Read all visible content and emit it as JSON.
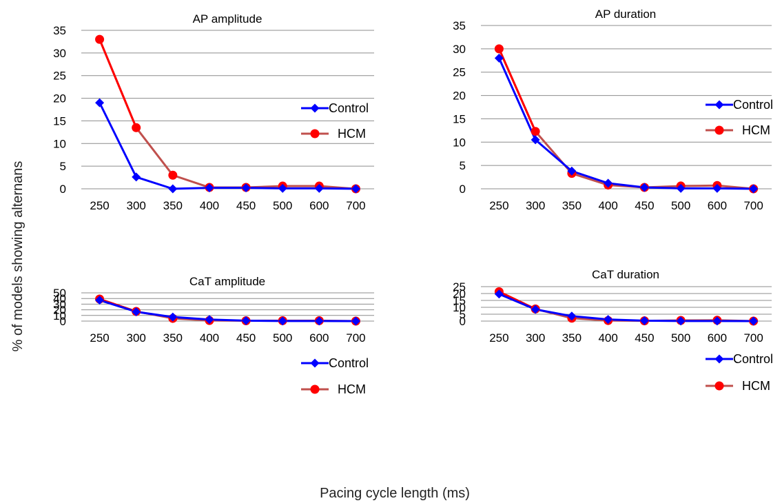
{
  "figure": {
    "xlabel": "Pacing cycle length (ms)",
    "ylabel": "% of models showing alternans",
    "series_colors": {
      "Control": "#0000ff",
      "HCM": "#ff0000",
      "HCM_line": "#c0504d"
    }
  },
  "chart_data": [
    {
      "type": "line",
      "title": "AP amplitude",
      "categories": [
        "250",
        "300",
        "350",
        "400",
        "450",
        "500",
        "600",
        "700"
      ],
      "ylim": [
        0,
        35
      ],
      "yticks": [
        "0",
        "5",
        "10",
        "15",
        "20",
        "25",
        "30",
        "35"
      ],
      "legend": "right",
      "grid": true,
      "series": [
        {
          "name": "Control",
          "values": [
            19,
            2.6,
            0,
            0.2,
            0.2,
            0.1,
            0.1,
            0
          ],
          "marker": "diamond"
        },
        {
          "name": "HCM",
          "values": [
            33,
            13.5,
            3,
            0.3,
            0.3,
            0.6,
            0.6,
            0
          ],
          "marker": "circle"
        }
      ]
    },
    {
      "type": "line",
      "title": "AP duration",
      "categories": [
        "250",
        "300",
        "350",
        "400",
        "450",
        "500",
        "600",
        "700"
      ],
      "ylim": [
        0,
        35
      ],
      "yticks": [
        "0",
        "5",
        "10",
        "15",
        "20",
        "25",
        "30",
        "35"
      ],
      "legend": "right",
      "grid": true,
      "series": [
        {
          "name": "Control",
          "values": [
            28,
            10.5,
            3.8,
            1.2,
            0.3,
            0.1,
            0.1,
            0
          ],
          "marker": "diamond"
        },
        {
          "name": "HCM",
          "values": [
            30,
            12.3,
            3.3,
            0.8,
            0.3,
            0.6,
            0.7,
            0
          ],
          "marker": "circle"
        }
      ]
    },
    {
      "type": "line",
      "title": "CaT amplitude",
      "categories": [
        "250",
        "300",
        "350",
        "400",
        "450",
        "500",
        "600",
        "700"
      ],
      "ylim": [
        0,
        50
      ],
      "yticks": [
        "0",
        "10",
        "20",
        "30",
        "40",
        "50"
      ],
      "legend": "right",
      "grid": true,
      "series": [
        {
          "name": "Control",
          "values": [
            37,
            16.5,
            7.2,
            2.8,
            0.8,
            0.2,
            0.2,
            0
          ],
          "marker": "diamond"
        },
        {
          "name": "HCM",
          "values": [
            39,
            17,
            4.8,
            1,
            0.6,
            0.8,
            0.8,
            0
          ],
          "marker": "circle"
        }
      ]
    },
    {
      "type": "line",
      "title": "CaT duration",
      "categories": [
        "250",
        "300",
        "350",
        "400",
        "450",
        "500",
        "600",
        "700"
      ],
      "ylim": [
        0,
        25
      ],
      "yticks": [
        "0",
        "5",
        "10",
        "15",
        "20",
        "25"
      ],
      "legend": "right",
      "grid": true,
      "series": [
        {
          "name": "Control",
          "values": [
            19.6,
            8.5,
            3.6,
            1.2,
            0.3,
            0.05,
            0.05,
            0
          ],
          "marker": "diamond"
        },
        {
          "name": "HCM",
          "values": [
            21.3,
            8.8,
            2.1,
            0.4,
            0.2,
            0.5,
            0.6,
            0
          ],
          "marker": "circle"
        }
      ]
    }
  ]
}
